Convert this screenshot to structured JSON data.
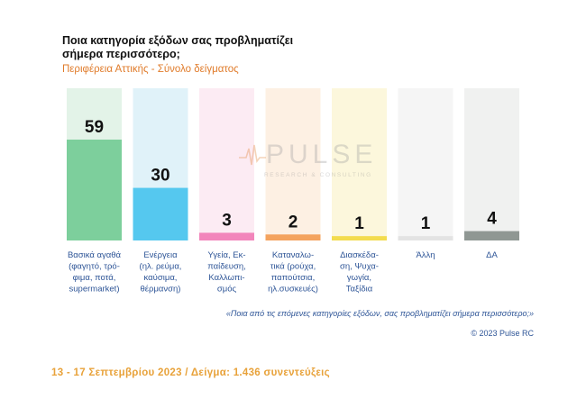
{
  "header": {
    "title_line1": "Ποια κατηγορία εξόδων σας προβληματίζει",
    "title_line2": "σήμερα περισσότερο;",
    "subtitle": "Περιφέρεια Αττικής - Σύνολο δείγματος"
  },
  "watermark": {
    "brand": "PULSE",
    "tagline": "RESEARCH & CONSULTING"
  },
  "chart_data": {
    "type": "bar",
    "categories": [
      [
        "Βασικά αγαθά",
        "(φαγητό, τρό-",
        "φιμα, ποτά,",
        "supermarket)"
      ],
      [
        "Ενέργεια",
        "(ηλ. ρεύμα,",
        "καύσιμα,",
        "θέρμανση)"
      ],
      [
        "Υγεία, Εκ-",
        "παίδευση,",
        "Καλλωπι-",
        "σμός"
      ],
      [
        "Καταναλω-",
        "τικά (ρούχα,",
        "παπούτσια,",
        "ηλ.συσκευές)"
      ],
      [
        "Διασκέδα-",
        "ση, Ψυχα-",
        "γωγία,",
        "Ταξίδια"
      ],
      [
        "Άλλη"
      ],
      [
        "ΔΑ"
      ]
    ],
    "values": [
      59,
      30,
      3,
      2,
      1,
      1,
      4
    ],
    "colors": [
      "#7dcf9c",
      "#55c8ef",
      "#f285bb",
      "#f4a35e",
      "#f3dc4e",
      "#e3e3e3",
      "#8f9793"
    ],
    "column_tints": [
      "#e3f3e8",
      "#e0f2f9",
      "#fcebf3",
      "#fdf0e3",
      "#fcf7dc",
      "#f5f5f5",
      "#f0f1f0"
    ],
    "ylim": [
      0,
      59
    ]
  },
  "notes": {
    "question": "«Ποια από τις επόμενες κατηγορίες εξόδων, σας προβληματίζει σήμερα περισσότερο;»",
    "copyright": "© 2023 Pulse RC"
  },
  "footer": {
    "text": "13 - 17  Σεπτεμβρίου  2023  /  Δείγμα:  1.436 συνεντεύξεις"
  }
}
